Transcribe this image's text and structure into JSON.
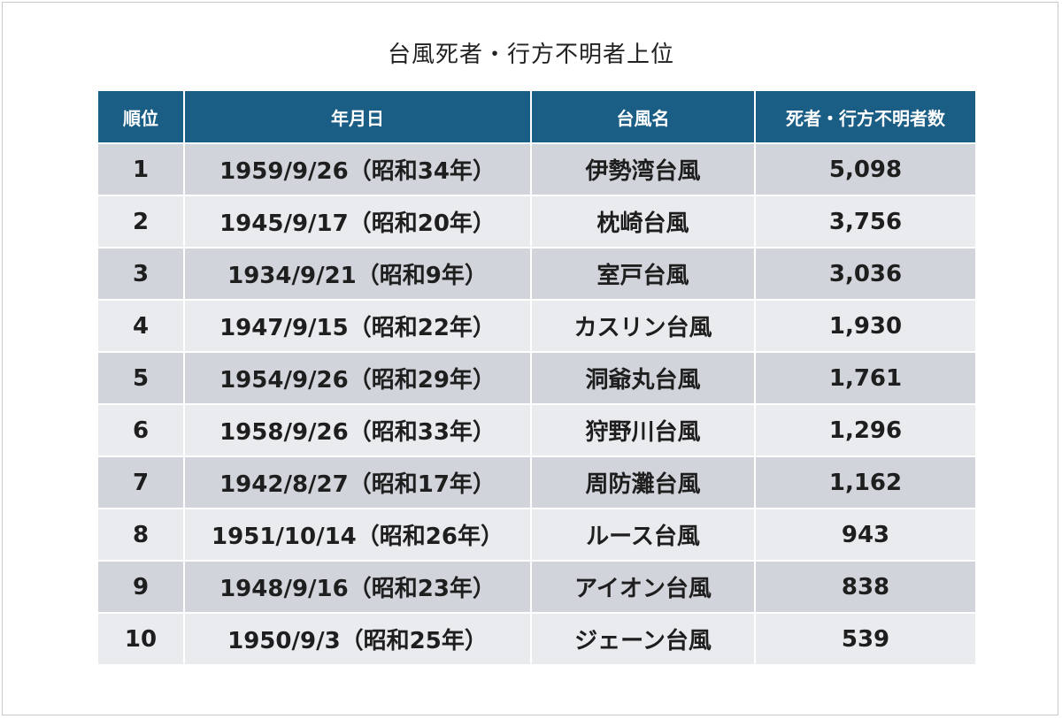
{
  "title": "台風死者・行方不明者上位",
  "table": {
    "headers": [
      "順位",
      "年月日",
      "台風名",
      "死者・行方不明者数"
    ],
    "rows": [
      {
        "rank": "1",
        "date": "1959/9/26（昭和34年）",
        "name": "伊勢湾台風",
        "count": "5,098"
      },
      {
        "rank": "2",
        "date": "1945/9/17（昭和20年）",
        "name": "枕崎台風",
        "count": "3,756"
      },
      {
        "rank": "3",
        "date": "1934/9/21（昭和9年）",
        "name": "室戸台風",
        "count": "3,036"
      },
      {
        "rank": "4",
        "date": "1947/9/15（昭和22年）",
        "name": "カスリン台風",
        "count": "1,930"
      },
      {
        "rank": "5",
        "date": "1954/9/26（昭和29年）",
        "name": "洞爺丸台風",
        "count": "1,761"
      },
      {
        "rank": "6",
        "date": "1958/9/26（昭和33年）",
        "name": "狩野川台風",
        "count": "1,296"
      },
      {
        "rank": "7",
        "date": "1942/8/27（昭和17年）",
        "name": "周防灘台風",
        "count": "1,162"
      },
      {
        "rank": "8",
        "date": "1951/10/14（昭和26年）",
        "name": "ルース台風",
        "count": "943"
      },
      {
        "rank": "9",
        "date": "1948/9/16（昭和23年）",
        "name": "アイオン台風",
        "count": "838"
      },
      {
        "rank": "10",
        "date": "1950/9/3（昭和25年）",
        "name": "ジェーン台風",
        "count": "539"
      }
    ]
  },
  "colors": {
    "header_bg": "#1a5d85",
    "row_odd": "#d1d5db",
    "row_even": "#e9ebee"
  }
}
